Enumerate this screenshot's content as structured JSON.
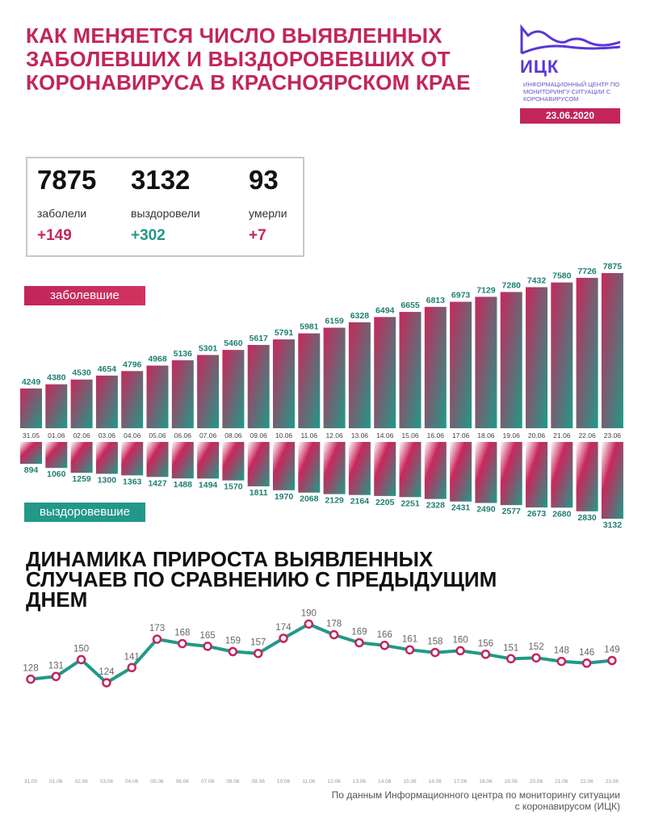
{
  "header": {
    "title": "КАК МЕНЯЕТСЯ ЧИСЛО ВЫЯВЛЕННЫХ ЗАБОЛЕВШИХ И ВЫЗДОРОВЕВШИХ ОТ КОРОНАВИРУСА В КРАСНОЯРСКОМ КРАЕ",
    "logo_name": "ИЦК",
    "logo_subtitle": "ИНФОРМАЦИОННЫЙ ЦЕНТР ПО МОНИТОРИНГУ СИТУАЦИИ С КОРОНАВИРУСОМ",
    "date": "23.06.2020"
  },
  "stats": {
    "sick": {
      "value": "7875",
      "label": "заболели",
      "delta": "+149",
      "delta_color": "#c2255c"
    },
    "recovered": {
      "value": "3132",
      "label": "выздоровели",
      "delta": "+302",
      "delta_color": "#22988a"
    },
    "died": {
      "value": "93",
      "label": "умерли",
      "delta": "+7",
      "delta_color": "#c2255c"
    }
  },
  "labels": {
    "sick_tag": "заболевшие",
    "recovered_tag": "выздоровевшие",
    "growth_title": "ДИНАМИКА ПРИРОСТА ВЫЯВЛЕННЫХ СЛУЧАЕВ ПО СРАВНЕНИЮ С ПРЕДЫДУЩИМ ДНЕМ",
    "footer": "По данным Информационного центра по мониторингу ситуации с коронавирусом (ИЦК)"
  },
  "colors": {
    "accent": "#c2255c",
    "teal": "#22988a",
    "logo": "#5a36d6"
  },
  "chart_data": [
    {
      "type": "bar",
      "categories": [
        "31.05",
        "01.06",
        "02.06",
        "03.06",
        "04.06",
        "05.06",
        "06.06",
        "07.06",
        "08.06",
        "09.06",
        "10.06",
        "11.06",
        "12.06",
        "13.06",
        "14.06",
        "15.06",
        "16.06",
        "17.06",
        "18.06",
        "19.06",
        "20.06",
        "21.06",
        "22.06",
        "23.06"
      ],
      "series": [
        {
          "name": "заболевшие",
          "values": [
            4249,
            4380,
            4530,
            4654,
            4796,
            4968,
            5136,
            5301,
            5460,
            5617,
            5791,
            5981,
            6159,
            6328,
            6494,
            6655,
            6813,
            6973,
            7129,
            7280,
            7432,
            7580,
            7726,
            7875
          ]
        },
        {
          "name": "выздоровевшие",
          "values": [
            894,
            1060,
            1259,
            1300,
            1363,
            1427,
            1488,
            1494,
            1570,
            1811,
            1970,
            2068,
            2129,
            2164,
            2205,
            2251,
            2328,
            2431,
            2490,
            2577,
            2673,
            2680,
            2830,
            3132
          ]
        }
      ]
    },
    {
      "type": "line",
      "categories": [
        "31.05",
        "01.06",
        "02.06",
        "03.06",
        "04.06",
        "05.06",
        "06.06",
        "07.06",
        "08.06",
        "09.06",
        "10.06",
        "11.06",
        "12.06",
        "13.06",
        "14.06",
        "15.06",
        "16.06",
        "17.06",
        "18.06",
        "19.06",
        "20.06",
        "21.06",
        "22.06",
        "23.06"
      ],
      "values": [
        128,
        131,
        150,
        124,
        141,
        173,
        168,
        165,
        159,
        157,
        174,
        190,
        178,
        169,
        166,
        161,
        158,
        160,
        156,
        151,
        152,
        148,
        146,
        149
      ],
      "title": "ДИНАМИКА ПРИРОСТА ВЫЯВЛЕННЫХ СЛУЧАЕВ ПО СРАВНЕНИЮ С ПРЕДЫДУЩИМ ДНЕМ"
    }
  ]
}
